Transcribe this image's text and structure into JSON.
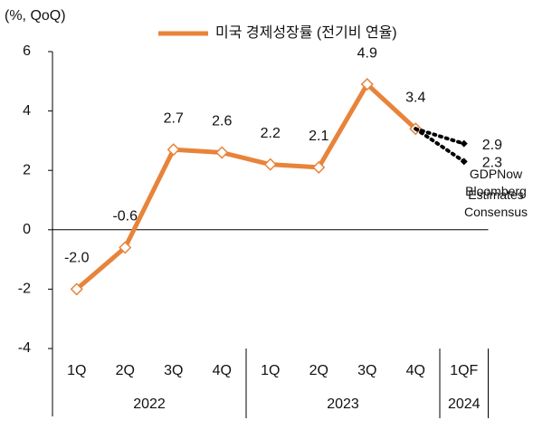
{
  "chart_data": {
    "type": "line",
    "unit_label": "(%, QoQ)",
    "categories": [
      "1Q",
      "2Q",
      "3Q",
      "4Q",
      "1Q",
      "2Q",
      "3Q",
      "4Q",
      "1QF"
    ],
    "groups": [
      {
        "label": "2022",
        "count": 4
      },
      {
        "label": "2023",
        "count": 4
      },
      {
        "label": "2024",
        "count": 1
      }
    ],
    "series": [
      {
        "name": "미국 경제성장률 (전기비 연율)",
        "color": "#e8833a",
        "values": [
          -2.0,
          -0.6,
          2.7,
          2.6,
          2.2,
          2.1,
          4.9,
          3.4,
          null
        ],
        "value_labels": [
          "-2.0",
          "-0.6",
          "2.7",
          "2.6",
          "2.2",
          "2.1",
          "4.9",
          "3.4",
          null
        ]
      },
      {
        "name": "GDPNow Estimates",
        "color": "#000000",
        "dotted": true,
        "values": [
          null,
          null,
          null,
          null,
          null,
          null,
          null,
          3.4,
          2.9
        ],
        "value_labels": [
          null,
          null,
          null,
          null,
          null,
          null,
          null,
          null,
          "2.9"
        ]
      },
      {
        "name": "Bloomberg Consensus",
        "color": "#000000",
        "dotted": true,
        "values": [
          null,
          null,
          null,
          null,
          null,
          null,
          null,
          3.4,
          2.3
        ],
        "value_labels": [
          null,
          null,
          null,
          null,
          null,
          null,
          null,
          null,
          "2.3"
        ]
      }
    ],
    "ylim": [
      -4,
      6
    ],
    "yticks": [
      -4,
      -2,
      0,
      2,
      4,
      6
    ],
    "grid": false,
    "legend": "top"
  }
}
